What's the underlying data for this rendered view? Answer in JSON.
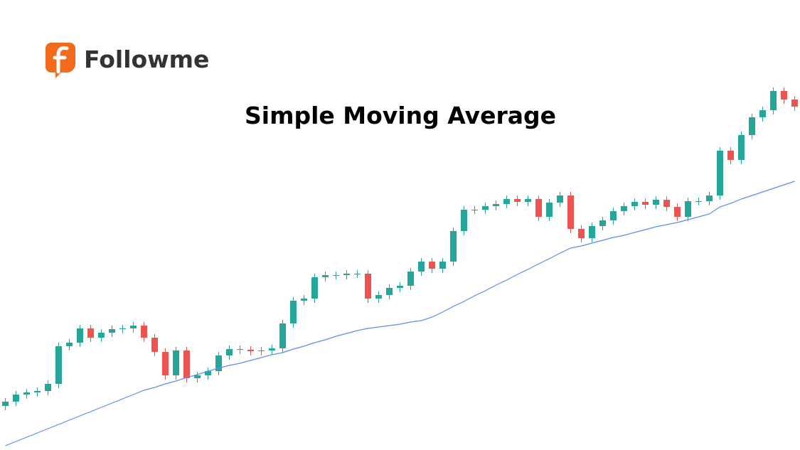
{
  "brand": "Followme",
  "chart_data": {
    "type": "candlestick",
    "title": "Simple Moving Average",
    "ylim": [
      0,
      633
    ],
    "up_color": "#26a69a",
    "down_color": "#ef5350",
    "open": [
      62,
      68,
      78,
      81,
      83,
      93,
      146,
      151,
      171,
      158,
      165,
      170,
      171,
      175,
      158,
      138,
      105,
      140,
      101,
      105,
      111,
      133,
      142,
      141,
      139,
      140,
      143,
      178,
      210,
      213,
      243,
      246,
      246,
      248,
      248,
      213,
      218,
      228,
      231,
      251,
      265,
      255,
      265,
      308,
      338,
      338,
      343,
      346,
      353,
      349,
      353,
      328,
      348,
      358,
      311,
      298,
      315,
      323,
      336,
      343,
      349,
      345,
      352,
      342,
      328,
      350,
      350,
      358,
      421,
      408,
      443,
      468,
      478,
      505,
      493
    ],
    "high": [
      73,
      83,
      86,
      88,
      98,
      151,
      156,
      176,
      176,
      170,
      175,
      176,
      180,
      180,
      163,
      143,
      145,
      145,
      110,
      116,
      138,
      147,
      147,
      146,
      145,
      148,
      183,
      215,
      218,
      248,
      251,
      251,
      253,
      253,
      253,
      223,
      233,
      236,
      256,
      270,
      270,
      270,
      313,
      343,
      343,
      348,
      351,
      358,
      358,
      358,
      358,
      353,
      363,
      363,
      316,
      320,
      328,
      341,
      348,
      354,
      354,
      357,
      357,
      347,
      355,
      355,
      363,
      426,
      426,
      448,
      473,
      483,
      510,
      510,
      498
    ],
    "low": [
      56,
      62,
      72,
      75,
      77,
      87,
      140,
      145,
      152,
      152,
      159,
      164,
      165,
      152,
      132,
      99,
      99,
      95,
      95,
      99,
      105,
      127,
      135,
      133,
      133,
      134,
      137,
      172,
      204,
      207,
      237,
      240,
      240,
      242,
      207,
      207,
      212,
      222,
      225,
      245,
      249,
      249,
      259,
      302,
      332,
      332,
      337,
      340,
      343,
      343,
      322,
      322,
      342,
      305,
      292,
      292,
      309,
      317,
      330,
      337,
      339,
      339,
      336,
      322,
      322,
      344,
      344,
      352,
      402,
      402,
      437,
      462,
      472,
      487,
      477
    ],
    "close": [
      68,
      78,
      81,
      83,
      93,
      146,
      151,
      171,
      158,
      165,
      170,
      171,
      175,
      158,
      138,
      105,
      140,
      101,
      105,
      111,
      133,
      142,
      141,
      139,
      140,
      143,
      178,
      210,
      213,
      243,
      246,
      246,
      248,
      248,
      213,
      218,
      228,
      231,
      251,
      265,
      255,
      265,
      308,
      338,
      338,
      343,
      346,
      353,
      349,
      353,
      328,
      348,
      358,
      311,
      298,
      315,
      323,
      336,
      343,
      349,
      345,
      352,
      342,
      328,
      350,
      350,
      358,
      421,
      408,
      443,
      468,
      478,
      505,
      493,
      483
    ],
    "moving_average": {
      "color": "#5b8def",
      "values": [
        6,
        12,
        18,
        24,
        30,
        36,
        42,
        48,
        54,
        60,
        66,
        72,
        78,
        84,
        88,
        93,
        97,
        102,
        106,
        111,
        115,
        119,
        122,
        126,
        130,
        134,
        137,
        142,
        146,
        151,
        155,
        160,
        164,
        168,
        171,
        173,
        175,
        177,
        180,
        182,
        187,
        194,
        202,
        209,
        217,
        224,
        232,
        239,
        247,
        254,
        262,
        269,
        277,
        284,
        287,
        291,
        295,
        299,
        302,
        306,
        310,
        314,
        317,
        320,
        324,
        328,
        332,
        342,
        347,
        353,
        358,
        363,
        368,
        373,
        378
      ]
    }
  }
}
